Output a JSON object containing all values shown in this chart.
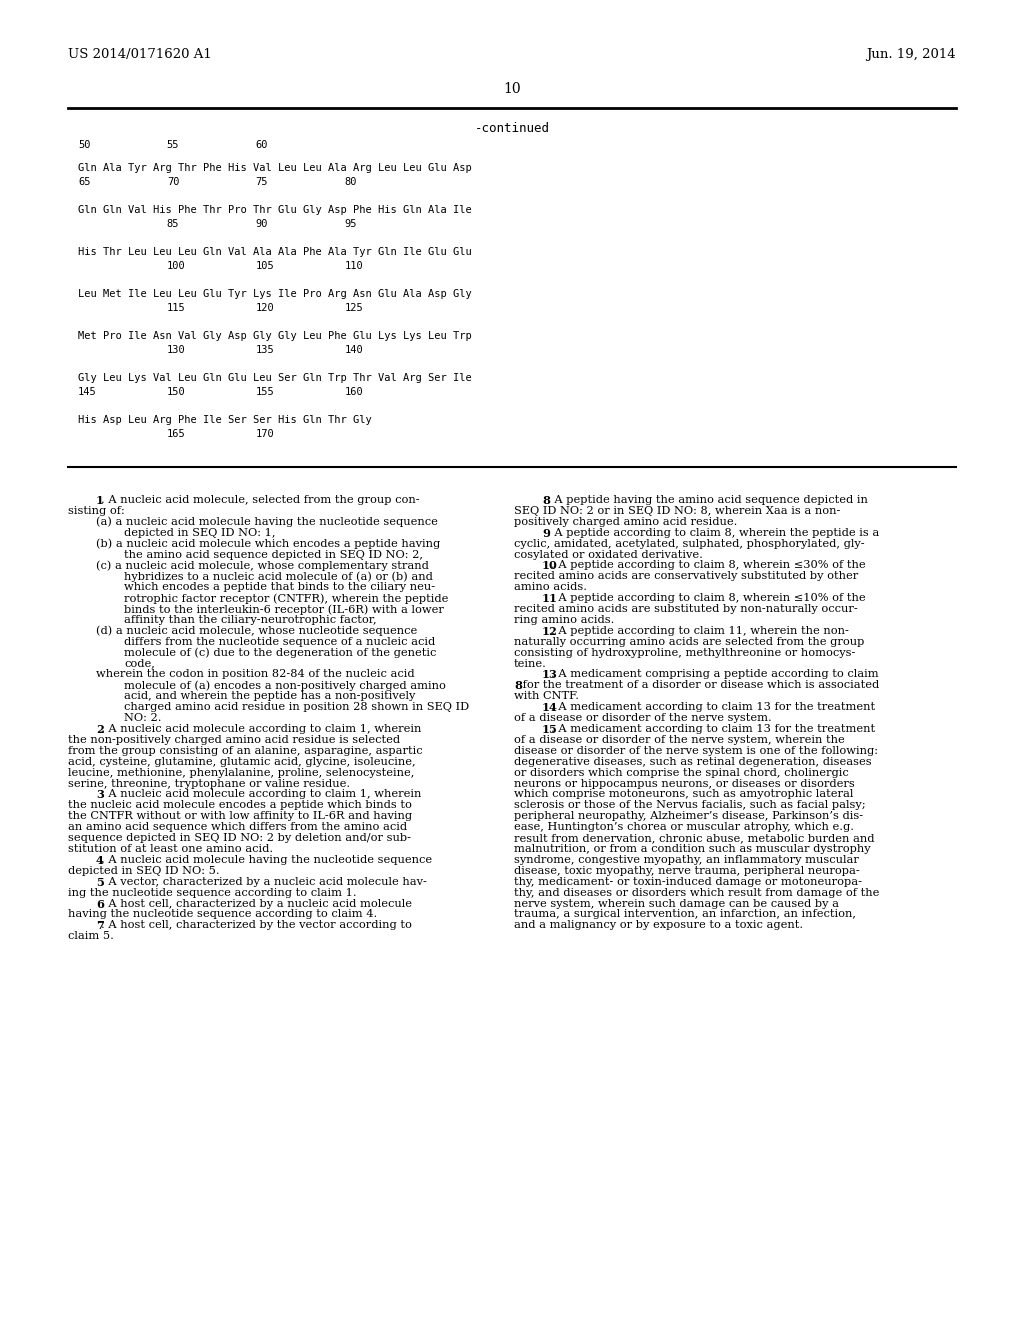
{
  "header_left": "US 2014/0171620 A1",
  "header_right": "Jun. 19, 2014",
  "page_number": "10",
  "continued_label": "-continued",
  "bg_color": "#ffffff",
  "text_color": "#000000",
  "seq_rows": [
    {
      "aa": "Gln Ala Tyr Arg Thr Phe His Val Leu Leu Ala Arg Leu Leu Glu Asp",
      "nums": [
        [
          "65",
          0
        ],
        [
          "70",
          4
        ],
        [
          "75",
          8
        ],
        [
          "80",
          12
        ]
      ]
    },
    {
      "aa": "Gln Gln Val His Phe Thr Pro Thr Glu Gly Asp Phe His Gln Ala Ile",
      "nums": [
        [
          "85",
          4
        ],
        [
          "90",
          8
        ],
        [
          "95",
          12
        ]
      ]
    },
    {
      "aa": "His Thr Leu Leu Leu Gln Val Ala Ala Phe Ala Tyr Gln Ile Glu Glu",
      "nums": [
        [
          "100",
          4
        ],
        [
          "105",
          8
        ],
        [
          "110",
          12
        ]
      ]
    },
    {
      "aa": "Leu Met Ile Leu Leu Glu Tyr Lys Ile Pro Arg Asn Glu Ala Asp Gly",
      "nums": [
        [
          "115",
          4
        ],
        [
          "120",
          8
        ],
        [
          "125",
          12
        ]
      ]
    },
    {
      "aa": "Met Pro Ile Asn Val Gly Asp Gly Gly Leu Phe Glu Lys Lys Leu Trp",
      "nums": [
        [
          "130",
          4
        ],
        [
          "135",
          8
        ],
        [
          "140",
          12
        ]
      ]
    },
    {
      "aa": "Gly Leu Lys Val Leu Gln Glu Leu Ser Gln Trp Thr Val Arg Ser Ile",
      "nums": [
        [
          "145",
          0
        ],
        [
          "150",
          4
        ],
        [
          "155",
          8
        ],
        [
          "160",
          12
        ]
      ]
    },
    {
      "aa": "His Asp Leu Arg Phe Ile Ser Ser His Gln Thr Gly",
      "nums": [
        [
          "165",
          4
        ],
        [
          "170",
          8
        ]
      ]
    }
  ],
  "seq_header_nums": [
    [
      "50",
      0
    ],
    [
      "55",
      4
    ],
    [
      "60",
      8
    ]
  ],
  "col1_lines": [
    {
      "bold": "1",
      "text": ". A nucleic acid molecule, selected from the group con-",
      "indent": 4
    },
    {
      "bold": "",
      "text": "sisting of:",
      "indent": 0
    },
    {
      "bold": "",
      "text": "(a) a nucleic acid molecule having the nucleotide sequence",
      "indent": 4
    },
    {
      "bold": "",
      "text": "depicted in SEQ ID NO: 1,",
      "indent": 8
    },
    {
      "bold": "",
      "text": "(b) a nucleic acid molecule which encodes a peptide having",
      "indent": 4
    },
    {
      "bold": "",
      "text": "the amino acid sequence depicted in SEQ ID NO: 2,",
      "indent": 8
    },
    {
      "bold": "",
      "text": "(c) a nucleic acid molecule, whose complementary strand",
      "indent": 4
    },
    {
      "bold": "",
      "text": "hybridizes to a nucleic acid molecule of (a) or (b) and",
      "indent": 8
    },
    {
      "bold": "",
      "text": "which encodes a peptide that binds to the ciliary neu-",
      "indent": 8
    },
    {
      "bold": "",
      "text": "rotrophic factor receptor (CNTFR), wherein the peptide",
      "indent": 8
    },
    {
      "bold": "",
      "text": "binds to the interleukin-6 receptor (IL-6R) with a lower",
      "indent": 8
    },
    {
      "bold": "",
      "text": "affinity than the ciliary-neurotrophic factor,",
      "indent": 8
    },
    {
      "bold": "",
      "text": "(d) a nucleic acid molecule, whose nucleotide sequence",
      "indent": 4
    },
    {
      "bold": "",
      "text": "differs from the nucleotide sequence of a nucleic acid",
      "indent": 8
    },
    {
      "bold": "",
      "text": "molecule of (c) due to the degeneration of the genetic",
      "indent": 8
    },
    {
      "bold": "",
      "text": "code,",
      "indent": 8
    },
    {
      "bold": "",
      "text": "wherein the codon in position 82-84 of the nucleic acid",
      "indent": 4
    },
    {
      "bold": "",
      "text": "molecule of (a) encodes a non-positively charged amino",
      "indent": 8
    },
    {
      "bold": "",
      "text": "acid, and wherein the peptide has a non-positively",
      "indent": 8
    },
    {
      "bold": "",
      "text": "charged amino acid residue in position 28 shown in SEQ ID",
      "indent": 8
    },
    {
      "bold": "",
      "text": "NO: 2.",
      "indent": 8
    },
    {
      "bold": "2",
      "text": ". A nucleic acid molecule according to claim 1, wherein",
      "indent": 4
    },
    {
      "bold": "",
      "text": "the non-positively charged amino acid residue is selected",
      "indent": 0
    },
    {
      "bold": "",
      "text": "from the group consisting of an alanine, asparagine, aspartic",
      "indent": 0
    },
    {
      "bold": "",
      "text": "acid, cysteine, glutamine, glutamic acid, glycine, isoleucine,",
      "indent": 0
    },
    {
      "bold": "",
      "text": "leucine, methionine, phenylalanine, proline, selenocysteine,",
      "indent": 0
    },
    {
      "bold": "",
      "text": "serine, threonine, tryptophane or valine residue.",
      "indent": 0
    },
    {
      "bold": "3",
      "text": ". A nucleic acid molecule according to claim 1, wherein",
      "indent": 4
    },
    {
      "bold": "",
      "text": "the nucleic acid molecule encodes a peptide which binds to",
      "indent": 0
    },
    {
      "bold": "",
      "text": "the CNTFR without or with low affinity to IL-6R and having",
      "indent": 0
    },
    {
      "bold": "",
      "text": "an amino acid sequence which differs from the amino acid",
      "indent": 0
    },
    {
      "bold": "",
      "text": "sequence depicted in SEQ ID NO: 2 by deletion and/or sub-",
      "indent": 0
    },
    {
      "bold": "",
      "text": "stitution of at least one amino acid.",
      "indent": 0
    },
    {
      "bold": "4",
      "text": ". A nucleic acid molecule having the nucleotide sequence",
      "indent": 4
    },
    {
      "bold": "",
      "text": "depicted in SEQ ID NO: 5.",
      "indent": 0
    },
    {
      "bold": "5",
      "text": ". A vector, characterized by a nucleic acid molecule hav-",
      "indent": 4
    },
    {
      "bold": "",
      "text": "ing the nucleotide sequence according to claim 1.",
      "indent": 0
    },
    {
      "bold": "6",
      "text": ". A host cell, characterized by a nucleic acid molecule",
      "indent": 4
    },
    {
      "bold": "",
      "text": "having the nucleotide sequence according to claim 4.",
      "indent": 0
    },
    {
      "bold": "7",
      "text": ". A host cell, characterized by the vector according to",
      "indent": 4
    },
    {
      "bold": "",
      "text": "claim 5.",
      "indent": 0
    }
  ],
  "col2_lines": [
    {
      "bold": "8",
      "text": ". A peptide having the amino acid sequence depicted in",
      "indent": 4
    },
    {
      "bold": "",
      "text": "SEQ ID NO: 2 or in SEQ ID NO: 8, wherein Xaa is a non-",
      "indent": 0
    },
    {
      "bold": "",
      "text": "positively charged amino acid residue.",
      "indent": 0
    },
    {
      "bold": "9",
      "text": ". A peptide according to claim 8, wherein the peptide is a",
      "indent": 4
    },
    {
      "bold": "",
      "text": "cyclic, amidated, acetylated, sulphated, phosphorylated, gly-",
      "indent": 0
    },
    {
      "bold": "",
      "text": "cosylated or oxidated derivative.",
      "indent": 0
    },
    {
      "bold": "10",
      "text": ". A peptide according to claim 8, wherein ≤30% of the",
      "indent": 4
    },
    {
      "bold": "",
      "text": "recited amino acids are conservatively substituted by other",
      "indent": 0
    },
    {
      "bold": "",
      "text": "amino acids.",
      "indent": 0
    },
    {
      "bold": "11",
      "text": ". A peptide according to claim 8, wherein ≤10% of the",
      "indent": 4
    },
    {
      "bold": "",
      "text": "recited amino acids are substituted by non-naturally occur-",
      "indent": 0
    },
    {
      "bold": "",
      "text": "ring amino acids.",
      "indent": 0
    },
    {
      "bold": "12",
      "text": ". A peptide according to claim 11, wherein the non-",
      "indent": 4
    },
    {
      "bold": "",
      "text": "naturally occurring amino acids are selected from the group",
      "indent": 0
    },
    {
      "bold": "",
      "text": "consisting of hydroxyproline, methylthreonine or homocys-",
      "indent": 0
    },
    {
      "bold": "",
      "text": "teine.",
      "indent": 0
    },
    {
      "bold": "13",
      "text": ". A medicament comprising a peptide according to claim",
      "indent": 4
    },
    {
      "bold": "8",
      "text": " for the treatment of a disorder or disease which is associated",
      "indent": 0,
      "bold_inline": true
    },
    {
      "bold": "",
      "text": "with CNTF.",
      "indent": 0
    },
    {
      "bold": "14",
      "text": ". A medicament according to claim 13 for the treatment",
      "indent": 4
    },
    {
      "bold": "",
      "text": "of a disease or disorder of the nerve system.",
      "indent": 0
    },
    {
      "bold": "15",
      "text": ". A medicament according to claim 13 for the treatment",
      "indent": 4
    },
    {
      "bold": "",
      "text": "of a disease or disorder of the nerve system, wherein the",
      "indent": 0
    },
    {
      "bold": "",
      "text": "disease or disorder of the nerve system is one of the following:",
      "indent": 0
    },
    {
      "bold": "",
      "text": "degenerative diseases, such as retinal degeneration, diseases",
      "indent": 0
    },
    {
      "bold": "",
      "text": "or disorders which comprise the spinal chord, cholinergic",
      "indent": 0
    },
    {
      "bold": "",
      "text": "neurons or hippocampus neurons, or diseases or disorders",
      "indent": 0
    },
    {
      "bold": "",
      "text": "which comprise motoneurons, such as amyotrophic lateral",
      "indent": 0
    },
    {
      "bold": "",
      "text": "sclerosis or those of the Nervus facialis, such as facial palsy;",
      "indent": 0
    },
    {
      "bold": "",
      "text": "peripheral neuropathy, Alzheimer’s disease, Parkinson’s dis-",
      "indent": 0
    },
    {
      "bold": "",
      "text": "ease, Huntington’s chorea or muscular atrophy, which e.g.",
      "indent": 0
    },
    {
      "bold": "",
      "text": "result from denervation, chronic abuse, metabolic burden and",
      "indent": 0
    },
    {
      "bold": "",
      "text": "malnutrition, or from a condition such as muscular dystrophy",
      "indent": 0
    },
    {
      "bold": "",
      "text": "syndrome, congestive myopathy, an inflammatory muscular",
      "indent": 0
    },
    {
      "bold": "",
      "text": "disease, toxic myopathy, nerve trauma, peripheral neuropa-",
      "indent": 0
    },
    {
      "bold": "",
      "text": "thy, medicament- or toxin-induced damage or motoneuropa-",
      "indent": 0
    },
    {
      "bold": "",
      "text": "thy, and diseases or disorders which result from damage of the",
      "indent": 0
    },
    {
      "bold": "",
      "text": "nerve system, wherein such damage can be caused by a",
      "indent": 0
    },
    {
      "bold": "",
      "text": "trauma, a surgical intervention, an infarction, an infection,",
      "indent": 0
    },
    {
      "bold": "",
      "text": "and a malignancy or by exposure to a toxic agent.",
      "indent": 0
    }
  ]
}
